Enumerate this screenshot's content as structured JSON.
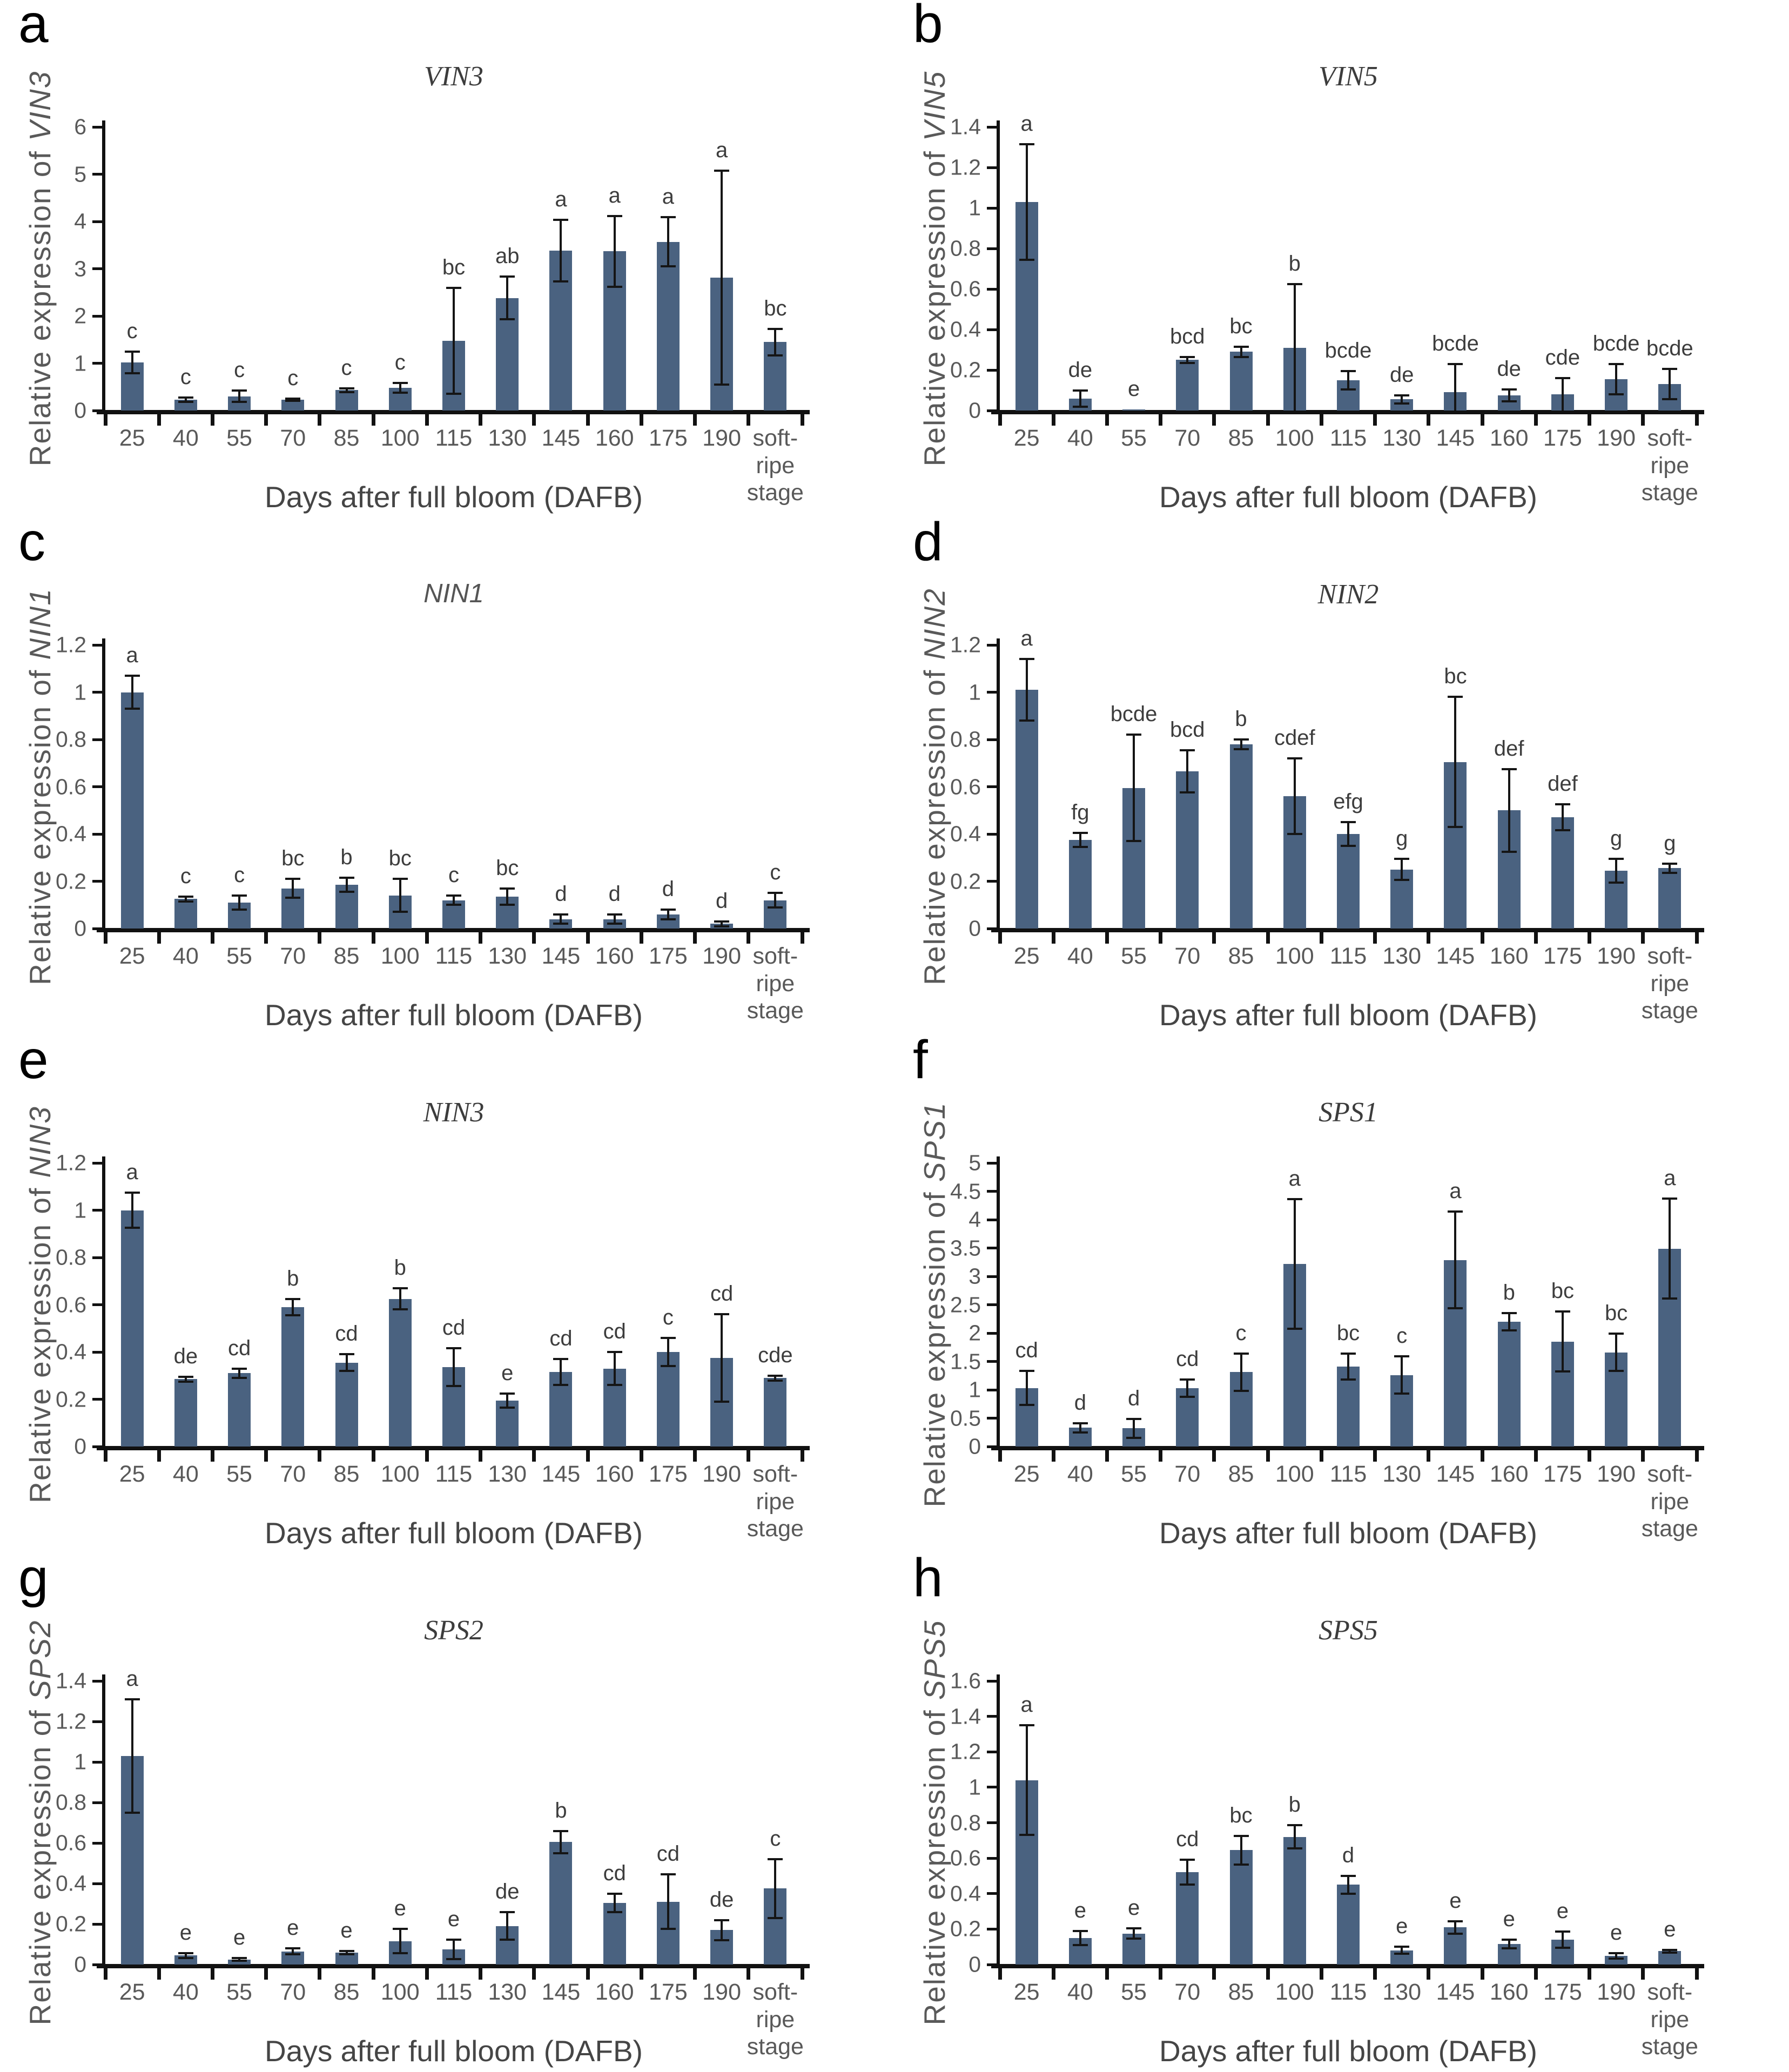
{
  "colors": {
    "bar": "#4a6280",
    "error_bar": "#151515",
    "axis": "#111111",
    "tick_label": "#595959",
    "panel_letter": "#000000"
  },
  "chart_data": [
    {
      "type": "bar",
      "panel": "a",
      "title": "VIN3",
      "gene": "VIN3",
      "ylabel_prefix": "Relative expression of ",
      "ylabel": "Relative expression of VIN3",
      "xlabel": "Days after full bloom (DAFB)",
      "ylim": [
        0,
        6
      ],
      "yticks": [
        "0",
        "1",
        "2",
        "3",
        "4",
        "5",
        "6"
      ],
      "grid": false,
      "categories": [
        "25",
        "40",
        "55",
        "70",
        "85",
        "100",
        "115",
        "130",
        "145",
        "160",
        "175",
        "190",
        "soft-\nripe\nstage"
      ],
      "values": [
        1.02,
        0.23,
        0.3,
        0.23,
        0.43,
        0.48,
        1.47,
        2.38,
        3.38,
        3.37,
        3.57,
        2.81,
        1.45
      ],
      "errors": [
        0.23,
        0.05,
        0.12,
        0.02,
        0.04,
        0.1,
        1.12,
        0.45,
        0.65,
        0.75,
        0.52,
        2.26,
        0.28
      ],
      "letters": [
        "c",
        "c",
        "c",
        "c",
        "c",
        "c",
        "bc",
        "ab",
        "a",
        "a",
        "a",
        "a",
        "bc"
      ]
    },
    {
      "type": "bar",
      "panel": "b",
      "title": "VIN5",
      "gene": "VIN5",
      "ylabel_prefix": "Relative expression of ",
      "ylabel": "Relative expression of VIN5",
      "xlabel": "Days after full bloom (DAFB)",
      "ylim": [
        0,
        1.4
      ],
      "yticks": [
        "0",
        "0.2",
        "0.4",
        "0.6",
        "0.8",
        "1",
        "1.2",
        "1.4"
      ],
      "grid": false,
      "categories": [
        "25",
        "40",
        "55",
        "70",
        "85",
        "100",
        "115",
        "130",
        "145",
        "160",
        "175",
        "190",
        "soft-\nripe\nstage"
      ],
      "values": [
        1.03,
        0.06,
        0.005,
        0.25,
        0.29,
        0.31,
        0.15,
        0.055,
        0.09,
        0.075,
        0.08,
        0.155,
        0.13
      ],
      "errors": [
        0.285,
        0.04,
        0,
        0.015,
        0.025,
        0.315,
        0.045,
        0.02,
        0.14,
        0.03,
        0.08,
        0.075,
        0.075
      ],
      "letters": [
        "a",
        "de",
        "e",
        "bcd",
        "bc",
        "b",
        "bcde",
        "de",
        "bcde",
        "de",
        "cde",
        "bcde",
        "bcde"
      ]
    },
    {
      "type": "bar",
      "panel": "c",
      "title": "NIN1",
      "gene": "NIN1",
      "ylabel_prefix": "Relative expression of ",
      "ylabel": "Relative expression of NIN1",
      "xlabel": "Days after full bloom (DAFB)",
      "ylim": [
        0,
        1.2
      ],
      "yticks": [
        "0",
        "0.2",
        "0.4",
        "0.6",
        "0.8",
        "1",
        "1.2"
      ],
      "grid": false,
      "categories": [
        "25",
        "40",
        "55",
        "70",
        "85",
        "100",
        "115",
        "130",
        "145",
        "160",
        "175",
        "190",
        "soft-\nripe\nstage"
      ],
      "values": [
        1.0,
        0.125,
        0.11,
        0.17,
        0.185,
        0.14,
        0.12,
        0.135,
        0.04,
        0.04,
        0.06,
        0.02,
        0.12
      ],
      "errors": [
        0.07,
        0.01,
        0.03,
        0.04,
        0.03,
        0.07,
        0.02,
        0.035,
        0.02,
        0.02,
        0.02,
        0.01,
        0.03
      ],
      "letters": [
        "a",
        "c",
        "c",
        "bc",
        "b",
        "bc",
        "c",
        "bc",
        "d",
        "d",
        "d",
        "d",
        "c"
      ]
    },
    {
      "type": "bar",
      "panel": "d",
      "title": "NIN2",
      "gene": "NIN2",
      "ylabel_prefix": "Relative expression of ",
      "ylabel": "Relative expression of NIN2",
      "xlabel": "Days after full bloom (DAFB)",
      "ylim": [
        0,
        1.2
      ],
      "yticks": [
        "0",
        "0.2",
        "0.4",
        "0.6",
        "0.8",
        "1",
        "1.2"
      ],
      "grid": false,
      "categories": [
        "25",
        "40",
        "55",
        "70",
        "85",
        "100",
        "115",
        "130",
        "145",
        "160",
        "175",
        "190",
        "soft-\nripe\nstage"
      ],
      "values": [
        1.01,
        0.375,
        0.595,
        0.665,
        0.78,
        0.56,
        0.4,
        0.25,
        0.705,
        0.5,
        0.47,
        0.245,
        0.255
      ],
      "errors": [
        0.13,
        0.03,
        0.225,
        0.09,
        0.02,
        0.16,
        0.05,
        0.045,
        0.275,
        0.175,
        0.055,
        0.05,
        0.02
      ],
      "letters": [
        "a",
        "fg",
        "bcde",
        "bcd",
        "b",
        "cdef",
        "efg",
        "g",
        "bc",
        "def",
        "def",
        "g",
        "g"
      ]
    },
    {
      "type": "bar",
      "panel": "e",
      "title": "NIN3",
      "gene": "NIN3",
      "ylabel_prefix": "Relative expression of ",
      "ylabel": "Relative expression of NIN3",
      "xlabel": "Days after full bloom (DAFB)",
      "ylim": [
        0,
        1.2
      ],
      "yticks": [
        "0",
        "0.2",
        "0.4",
        "0.6",
        "0.8",
        "1",
        "1.2"
      ],
      "grid": false,
      "categories": [
        "25",
        "40",
        "55",
        "70",
        "85",
        "100",
        "115",
        "130",
        "145",
        "160",
        "175",
        "190",
        "soft-\nripe\nstage"
      ],
      "values": [
        1.0,
        0.285,
        0.31,
        0.59,
        0.355,
        0.625,
        0.335,
        0.195,
        0.315,
        0.33,
        0.4,
        0.375,
        0.29
      ],
      "errors": [
        0.075,
        0.01,
        0.02,
        0.035,
        0.035,
        0.045,
        0.08,
        0.03,
        0.055,
        0.07,
        0.06,
        0.185,
        0.01
      ],
      "letters": [
        "a",
        "de",
        "cd",
        "b",
        "cd",
        "b",
        "cd",
        "e",
        "cd",
        "cd",
        "c",
        "cd",
        "cde"
      ]
    },
    {
      "type": "bar",
      "panel": "f",
      "title": "SPS1",
      "gene": "SPS1",
      "ylabel_prefix": "Relative expression of ",
      "ylabel": "Relative expression of SPS1",
      "xlabel": "Days after full bloom (DAFB)",
      "ylim": [
        0,
        5
      ],
      "yticks": [
        "0",
        "0.5",
        "1",
        "1.5",
        "2",
        "2.5",
        "3",
        "3.5",
        "4",
        "4.5",
        "5"
      ],
      "grid": false,
      "categories": [
        "25",
        "40",
        "55",
        "70",
        "85",
        "100",
        "115",
        "130",
        "145",
        "160",
        "175",
        "190",
        "soft-\nripe\nstage"
      ],
      "values": [
        1.03,
        0.33,
        0.32,
        1.03,
        1.31,
        3.22,
        1.41,
        1.26,
        3.29,
        2.2,
        1.85,
        1.66,
        3.49
      ],
      "errors": [
        0.3,
        0.08,
        0.17,
        0.15,
        0.33,
        1.14,
        0.23,
        0.33,
        0.85,
        0.15,
        0.53,
        0.33,
        0.88
      ],
      "letters": [
        "cd",
        "d",
        "d",
        "cd",
        "c",
        "a",
        "bc",
        "c",
        "a",
        "b",
        "bc",
        "bc",
        "a"
      ]
    },
    {
      "type": "bar",
      "panel": "g",
      "title": "SPS2",
      "gene": "SPS2",
      "ylabel_prefix": "Relative expression of ",
      "ylabel": "Relative expression of SPS2",
      "xlabel": "Days after full bloom (DAFB)",
      "ylim": [
        0,
        1.4
      ],
      "yticks": [
        "0",
        "0.2",
        "0.4",
        "0.6",
        "0.8",
        "1",
        "1.2",
        "1.4"
      ],
      "grid": false,
      "categories": [
        "25",
        "40",
        "55",
        "70",
        "85",
        "100",
        "115",
        "130",
        "145",
        "160",
        "175",
        "190",
        "soft-\nripe\nstage"
      ],
      "values": [
        1.03,
        0.045,
        0.025,
        0.065,
        0.06,
        0.115,
        0.075,
        0.19,
        0.605,
        0.305,
        0.31,
        0.17,
        0.375
      ],
      "errors": [
        0.28,
        0.012,
        0.006,
        0.015,
        0.008,
        0.06,
        0.048,
        0.068,
        0.055,
        0.045,
        0.135,
        0.05,
        0.145
      ],
      "letters": [
        "a",
        "e",
        "e",
        "e",
        "e",
        "e",
        "e",
        "de",
        "b",
        "cd",
        "cd",
        "de",
        "c"
      ]
    },
    {
      "type": "bar",
      "panel": "h",
      "title": "SPS5",
      "gene": "SPS5",
      "ylabel_prefix": "Relative expression of ",
      "ylabel": "Relative expression of SPS5",
      "xlabel": "Days after full bloom (DAFB)",
      "ylim": [
        0,
        1.6
      ],
      "yticks": [
        "0",
        "0.2",
        "0.4",
        "0.6",
        "0.8",
        "1",
        "1.2",
        "1.4",
        "1.6"
      ],
      "grid": false,
      "categories": [
        "25",
        "40",
        "55",
        "70",
        "85",
        "100",
        "115",
        "130",
        "145",
        "160",
        "175",
        "190",
        "soft-\nripe\nstage"
      ],
      "values": [
        1.04,
        0.15,
        0.175,
        0.52,
        0.645,
        0.72,
        0.45,
        0.08,
        0.21,
        0.115,
        0.14,
        0.05,
        0.075
      ],
      "errors": [
        0.31,
        0.04,
        0.03,
        0.07,
        0.08,
        0.065,
        0.05,
        0.02,
        0.035,
        0.025,
        0.045,
        0.015,
        0.008
      ],
      "letters": [
        "a",
        "e",
        "e",
        "cd",
        "bc",
        "b",
        "d",
        "e",
        "e",
        "e",
        "e",
        "e",
        "e"
      ]
    }
  ]
}
